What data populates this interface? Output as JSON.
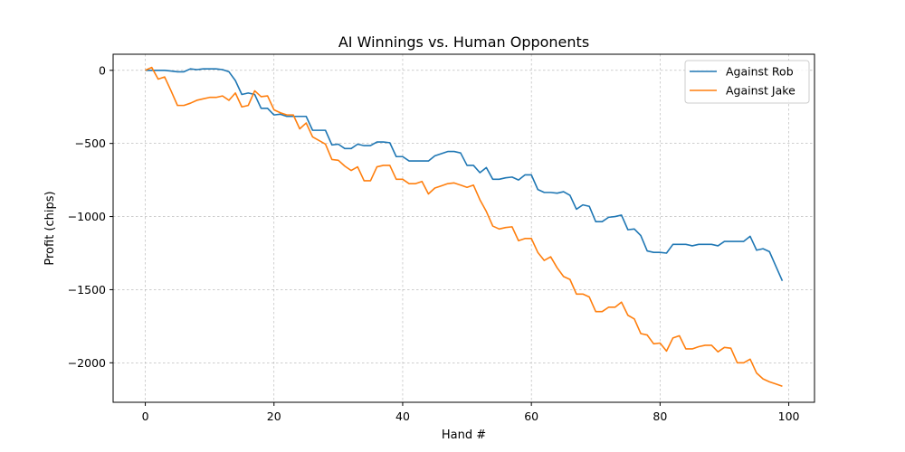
{
  "chart_data": {
    "type": "line",
    "title": "AI Winnings vs. Human Opponents",
    "xlabel": "Hand #",
    "ylabel": "Profit (chips)",
    "xlim": [
      -5,
      104
    ],
    "ylim": [
      -2270,
      110
    ],
    "xticks": [
      0,
      20,
      40,
      60,
      80,
      100
    ],
    "yticks": [
      0,
      -500,
      -1000,
      -1500,
      -2000
    ],
    "ytick_labels": [
      "0",
      "−500",
      "−1000",
      "−1500",
      "−2000"
    ],
    "grid": true,
    "legend_position": "top-right",
    "x": [
      0,
      1,
      2,
      3,
      4,
      5,
      6,
      7,
      8,
      9,
      10,
      11,
      12,
      13,
      14,
      15,
      16,
      17,
      18,
      19,
      20,
      21,
      22,
      23,
      24,
      25,
      26,
      27,
      28,
      29,
      30,
      31,
      32,
      33,
      34,
      35,
      36,
      37,
      38,
      39,
      40,
      41,
      42,
      43,
      44,
      45,
      46,
      47,
      48,
      49,
      50,
      51,
      52,
      53,
      54,
      55,
      56,
      57,
      58,
      59,
      60,
      61,
      62,
      63,
      64,
      65,
      66,
      67,
      68,
      69,
      70,
      71,
      72,
      73,
      74,
      75,
      76,
      77,
      78,
      79,
      80,
      81,
      82,
      83,
      84,
      85,
      86,
      87,
      88,
      89,
      90,
      91,
      92,
      93,
      94,
      95,
      96,
      97,
      98,
      99
    ],
    "series": [
      {
        "name": "Against Rob",
        "color": "#1f77b4",
        "values": [
          0,
          0,
          0,
          0,
          -5,
          -10,
          -10,
          10,
          5,
          10,
          10,
          10,
          5,
          -10,
          -70,
          -165,
          -155,
          -165,
          -260,
          -260,
          -305,
          -300,
          -315,
          -315,
          -315,
          -315,
          -410,
          -410,
          -410,
          -510,
          -505,
          -535,
          -535,
          -505,
          -515,
          -515,
          -490,
          -490,
          -495,
          -590,
          -590,
          -620,
          -620,
          -620,
          -620,
          -585,
          -570,
          -555,
          -555,
          -565,
          -650,
          -650,
          -700,
          -665,
          -745,
          -745,
          -735,
          -730,
          -750,
          -715,
          -715,
          -815,
          -835,
          -835,
          -840,
          -830,
          -855,
          -950,
          -920,
          -930,
          -1035,
          -1035,
          -1005,
          -1000,
          -990,
          -1090,
          -1085,
          -1130,
          -1235,
          -1245,
          -1245,
          -1250,
          -1190,
          -1190,
          -1190,
          -1200,
          -1190,
          -1190,
          -1190,
          -1200,
          -1170,
          -1170,
          -1170,
          -1170,
          -1135,
          -1230,
          -1220,
          -1240,
          -1340,
          -1440
        ]
      },
      {
        "name": "Against Jake",
        "color": "#ff7f0e",
        "values": [
          0,
          20,
          -60,
          -45,
          -140,
          -240,
          -240,
          -225,
          -205,
          -195,
          -185,
          -185,
          -175,
          -205,
          -155,
          -250,
          -240,
          -140,
          -180,
          -175,
          -270,
          -290,
          -305,
          -305,
          -400,
          -360,
          -455,
          -480,
          -505,
          -610,
          -615,
          -655,
          -685,
          -660,
          -755,
          -755,
          -660,
          -650,
          -650,
          -745,
          -745,
          -775,
          -775,
          -760,
          -845,
          -805,
          -790,
          -775,
          -770,
          -785,
          -800,
          -785,
          -885,
          -965,
          -1065,
          -1085,
          -1075,
          -1070,
          -1165,
          -1150,
          -1150,
          -1245,
          -1300,
          -1275,
          -1350,
          -1410,
          -1430,
          -1530,
          -1530,
          -1550,
          -1650,
          -1650,
          -1620,
          -1620,
          -1585,
          -1675,
          -1700,
          -1800,
          -1810,
          -1870,
          -1865,
          -1920,
          -1830,
          -1815,
          -1905,
          -1905,
          -1890,
          -1880,
          -1880,
          -1925,
          -1895,
          -1900,
          -2000,
          -2000,
          -1975,
          -2070,
          -2110,
          -2130,
          -2145,
          -2160
        ]
      }
    ]
  }
}
